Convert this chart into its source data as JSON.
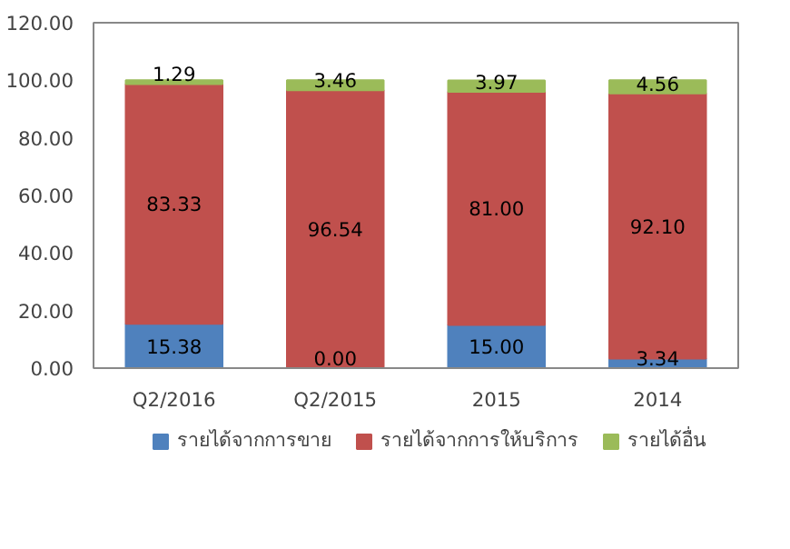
{
  "chart_data": {
    "type": "bar",
    "stacked": true,
    "categories": [
      "Q2/2016",
      "Q2/2015",
      "2015",
      "2014"
    ],
    "series": [
      {
        "name": "รายได้จากการขาย",
        "color": "#4f81bd",
        "values": [
          15.38,
          0.0,
          15.0,
          3.34
        ],
        "value_labels": [
          "15.38",
          "0.00",
          "15.00",
          "3.34"
        ]
      },
      {
        "name": "รายได้จากการให้บริการ",
        "color": "#c0504d",
        "values": [
          83.33,
          96.54,
          81.0,
          92.1
        ],
        "value_labels": [
          "83.33",
          "96.54",
          "81.00",
          "92.10"
        ]
      },
      {
        "name": "รายได้อื่น",
        "color": "#9bbb59",
        "values": [
          1.29,
          3.46,
          3.97,
          4.56
        ],
        "value_labels": [
          "1.29",
          "3.46",
          "3.97",
          "4.56"
        ]
      }
    ],
    "ylim": [
      0,
      120
    ],
    "yticks": [
      {
        "value": 0,
        "label": "0.00"
      },
      {
        "value": 20,
        "label": "20.00"
      },
      {
        "value": 40,
        "label": "40.00"
      },
      {
        "value": 60,
        "label": "60.00"
      },
      {
        "value": 80,
        "label": "80.00"
      },
      {
        "value": 100,
        "label": "100.00"
      },
      {
        "value": 120,
        "label": "120.00"
      }
    ],
    "grid": false,
    "legend": "bottom"
  }
}
